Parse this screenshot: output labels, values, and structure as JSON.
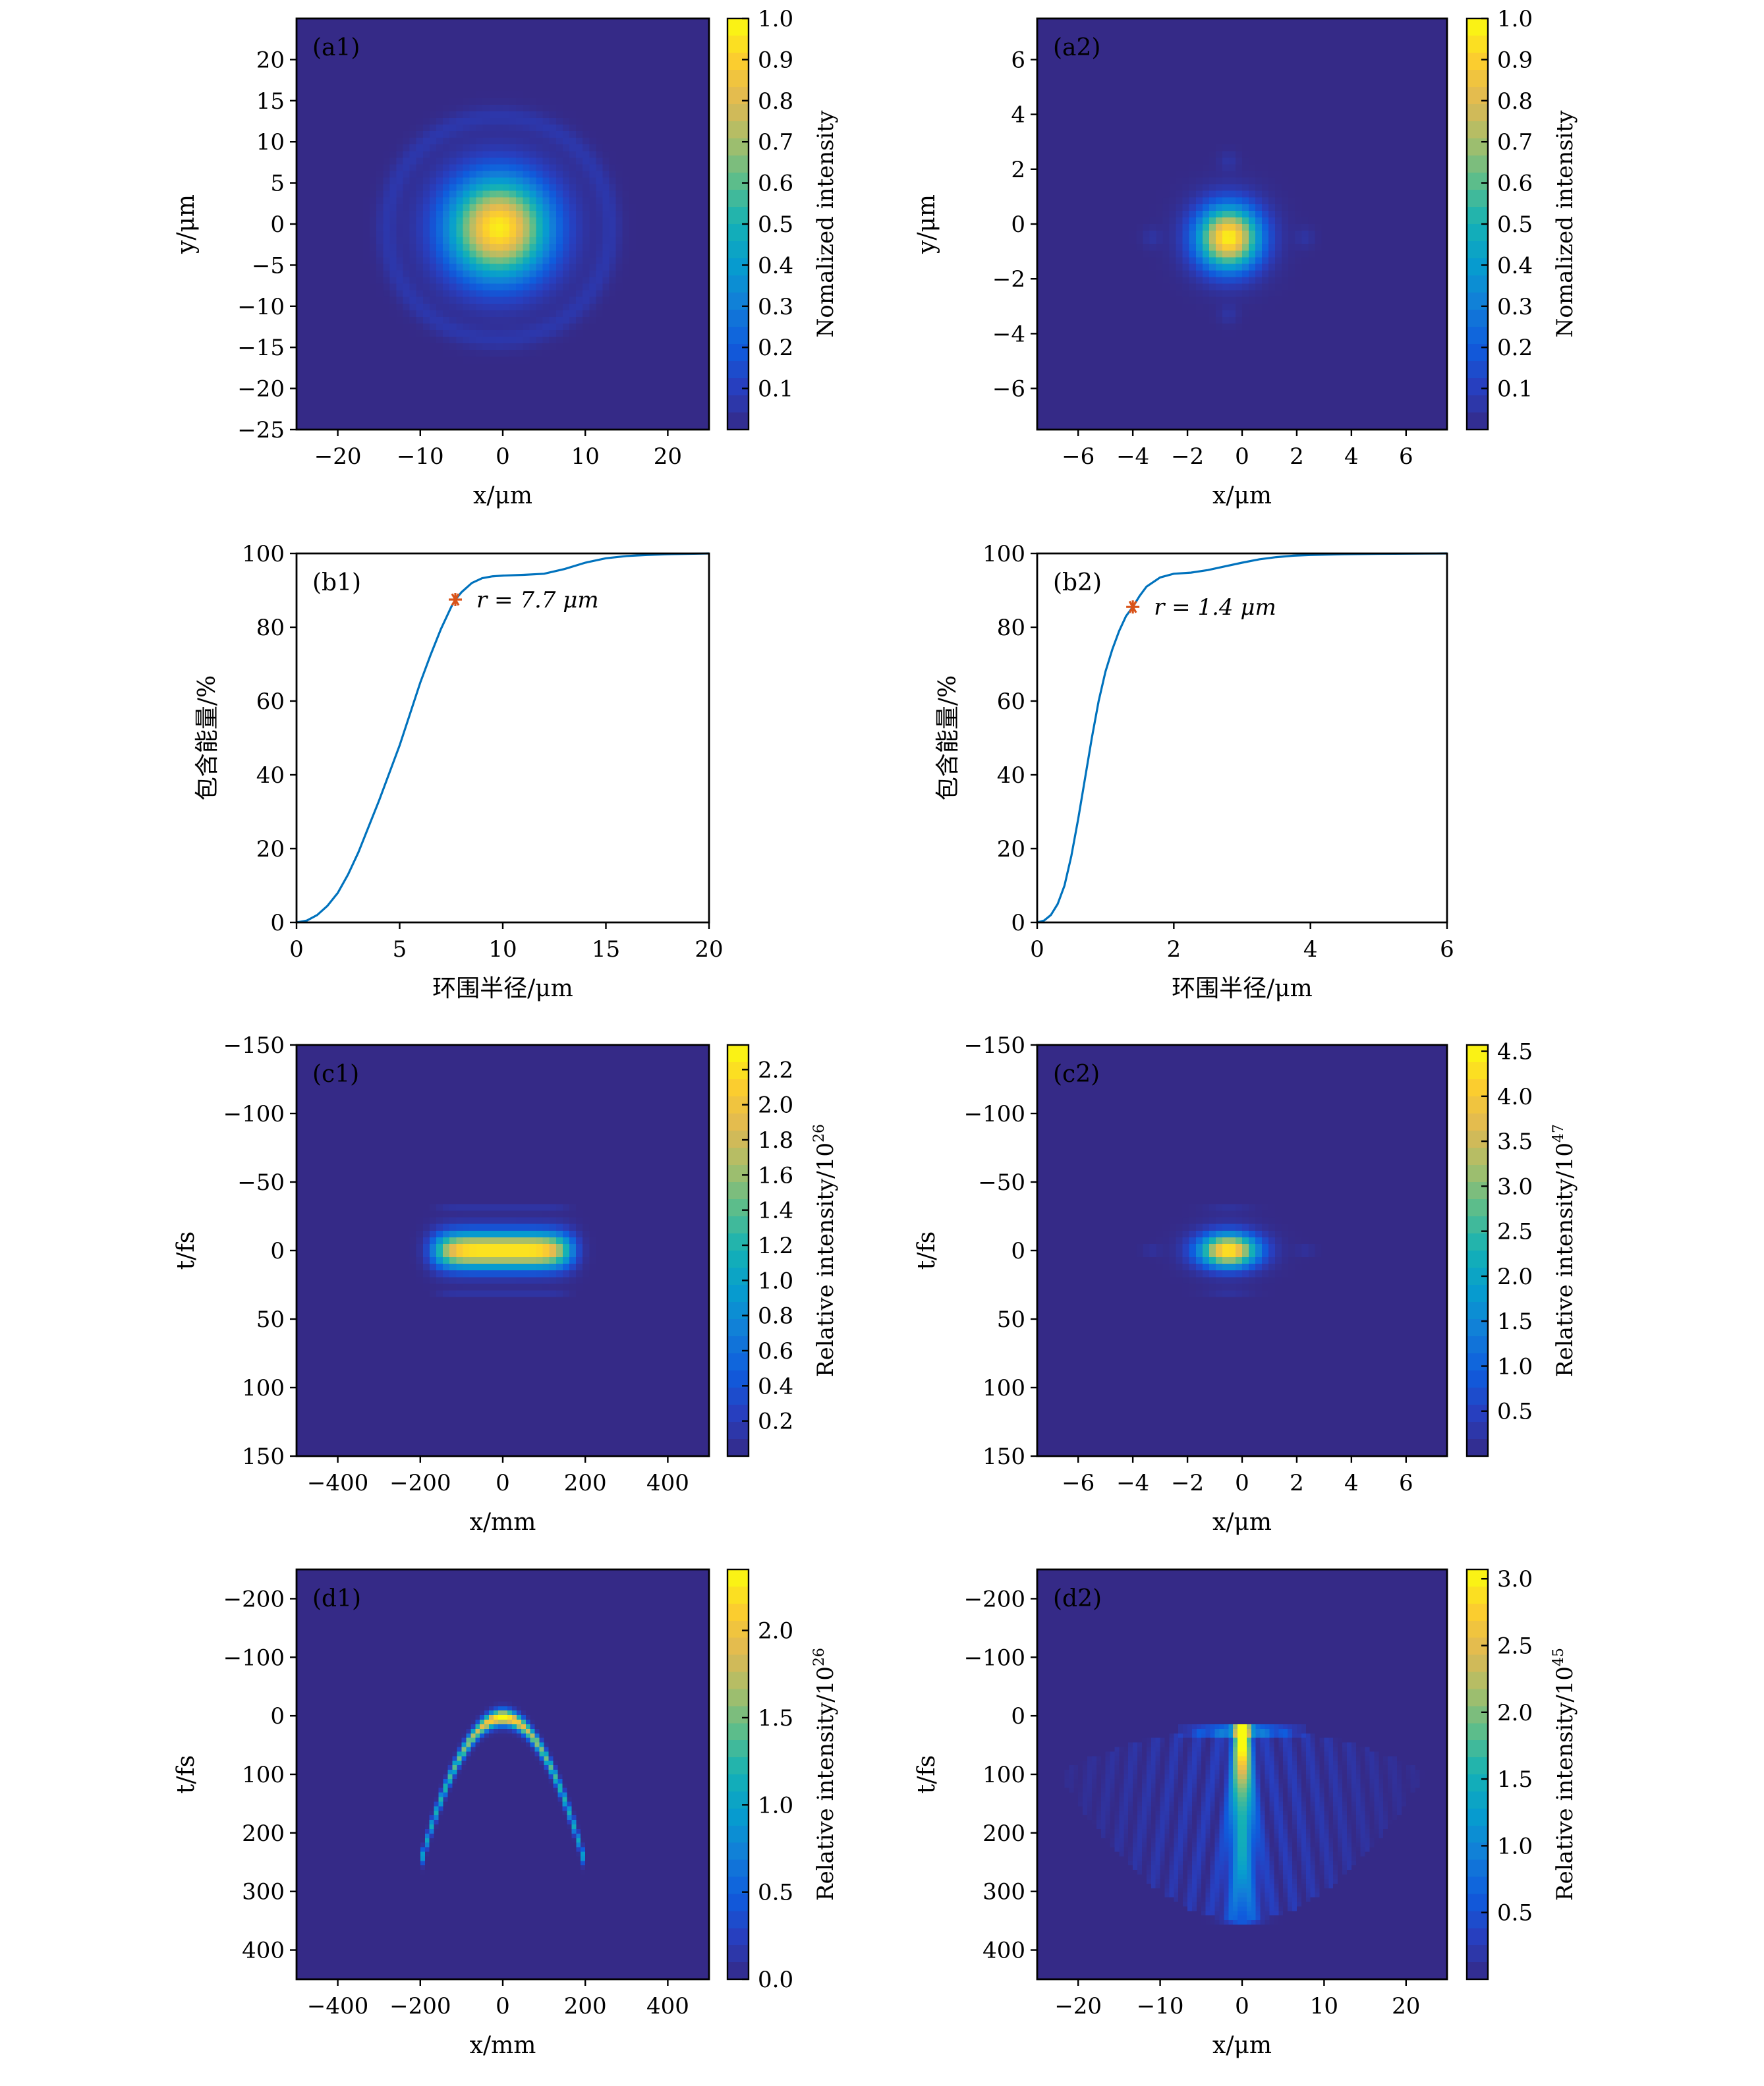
{
  "colors": {
    "colormap": "parula",
    "background_low": "#352a87",
    "curve": "#0072bd",
    "marker": "#d95319",
    "annotation_text": "#d7263d"
  },
  "chart_data": [
    {
      "type": "heatmap",
      "panel_label": "(a1)",
      "xlabel": "x/μm",
      "ylabel": "y/μm",
      "xlim": [
        -25,
        25
      ],
      "ylim": [
        -25,
        25
      ],
      "y_inverted": false,
      "xticks": [
        -20,
        -10,
        0,
        10,
        20
      ],
      "yticks": [
        20,
        15,
        10,
        5,
        0,
        -5,
        -10,
        -15,
        -20,
        -25
      ],
      "colorbar": {
        "label": "Nomalized intensity",
        "exponent": "",
        "range": [
          0,
          1
        ],
        "ticks": [
          0.1,
          0.2,
          0.3,
          0.4,
          0.5,
          0.6,
          0.7,
          0.8,
          0.9,
          1.0
        ]
      }
    },
    {
      "type": "heatmap",
      "panel_label": "(a2)",
      "xlabel": "x/μm",
      "ylabel": "y/μm",
      "xlim": [
        -7.5,
        7.5
      ],
      "ylim": [
        -7.5,
        7.5
      ],
      "y_inverted": false,
      "xticks": [
        -6,
        -4,
        -2,
        0,
        2,
        4,
        6
      ],
      "yticks": [
        6,
        4,
        2,
        0,
        -2,
        -4,
        -6
      ],
      "colorbar": {
        "label": "Nomalized intensity",
        "exponent": "",
        "range": [
          0,
          1
        ],
        "ticks": [
          0.1,
          0.2,
          0.3,
          0.4,
          0.5,
          0.6,
          0.7,
          0.8,
          0.9,
          1.0
        ]
      }
    },
    {
      "type": "line",
      "panel_label": "(b1)",
      "xlabel": "环围半径/μm",
      "ylabel": "包含能量/%",
      "xlim": [
        0,
        20
      ],
      "ylim": [
        0,
        100
      ],
      "xticks": [
        0,
        5,
        10,
        15,
        20
      ],
      "yticks": [
        0,
        20,
        40,
        60,
        80,
        100
      ],
      "x": [
        0,
        0.5,
        1,
        1.5,
        2,
        2.5,
        3,
        3.5,
        4,
        4.5,
        5,
        5.5,
        6,
        6.5,
        7,
        7.5,
        7.7,
        8,
        8.5,
        9,
        9.5,
        10,
        11,
        12,
        13,
        14,
        15,
        16,
        17,
        18,
        19,
        20
      ],
      "y": [
        0,
        0.5,
        2,
        4.5,
        8,
        13,
        19,
        26,
        33,
        40.5,
        48,
        56.5,
        65,
        72.5,
        79.5,
        85.5,
        87.5,
        89.5,
        92,
        93.3,
        93.8,
        94,
        94.2,
        94.5,
        95.8,
        97.5,
        98.7,
        99.3,
        99.6,
        99.8,
        99.9,
        100
      ],
      "marker": {
        "x": 7.7,
        "y": 87.5,
        "label": "r = 7.7 μm"
      }
    },
    {
      "type": "line",
      "panel_label": "(b2)",
      "xlabel": "环围半径/μm",
      "ylabel": "包含能量/%",
      "xlim": [
        0,
        6
      ],
      "ylim": [
        0,
        100
      ],
      "xticks": [
        0,
        2,
        4,
        6
      ],
      "yticks": [
        0,
        20,
        40,
        60,
        80,
        100
      ],
      "x": [
        0,
        0.1,
        0.2,
        0.3,
        0.4,
        0.5,
        0.6,
        0.7,
        0.8,
        0.9,
        1.0,
        1.1,
        1.2,
        1.3,
        1.4,
        1.5,
        1.6,
        1.8,
        2.0,
        2.25,
        2.5,
        2.75,
        3.0,
        3.25,
        3.5,
        3.75,
        4.0,
        4.5,
        5.0,
        6.0
      ],
      "y": [
        0,
        0.5,
        2,
        5,
        10,
        18,
        28,
        39,
        50,
        60,
        68,
        74,
        79,
        83,
        85.5,
        88.5,
        91,
        93.5,
        94.5,
        94.8,
        95.5,
        96.5,
        97.5,
        98.4,
        99,
        99.4,
        99.6,
        99.8,
        99.9,
        100
      ],
      "marker": {
        "x": 1.4,
        "y": 85.5,
        "label": "r = 1.4 μm"
      }
    },
    {
      "type": "heatmap",
      "panel_label": "(c1)",
      "xlabel": "x/mm",
      "ylabel": "t/fs",
      "xlim": [
        -500,
        500
      ],
      "ylim": [
        -150,
        150
      ],
      "y_inverted": true,
      "xticks": [
        -400,
        -200,
        0,
        200,
        400
      ],
      "yticks": [
        -150,
        -100,
        -50,
        0,
        50,
        100,
        150
      ],
      "colorbar": {
        "label": "Relative intensity/10",
        "exponent": "26",
        "range": [
          0,
          2.34
        ],
        "ticks": [
          0.2,
          0.4,
          0.6,
          0.8,
          1.0,
          1.2,
          1.4,
          1.6,
          1.8,
          2.0,
          2.2
        ]
      }
    },
    {
      "type": "heatmap",
      "panel_label": "(c2)",
      "xlabel": "x/μm",
      "ylabel": "t/fs",
      "xlim": [
        -7.5,
        7.5
      ],
      "ylim": [
        -150,
        150
      ],
      "y_inverted": true,
      "xticks": [
        -6,
        -4,
        -2,
        0,
        2,
        4,
        6
      ],
      "yticks": [
        -150,
        -100,
        -50,
        0,
        50,
        100,
        150
      ],
      "colorbar": {
        "label": "Relative intensity/10",
        "exponent": "47",
        "range": [
          0,
          4.57
        ],
        "ticks": [
          0.5,
          1.0,
          1.5,
          2.0,
          2.5,
          3.0,
          3.5,
          4.0,
          4.5
        ]
      }
    },
    {
      "type": "heatmap",
      "panel_label": "(d1)",
      "xlabel": "x/mm",
      "ylabel": "t/fs",
      "xlim": [
        -500,
        500
      ],
      "ylim": [
        -250,
        450
      ],
      "y_inverted": true,
      "xticks": [
        -400,
        -200,
        0,
        200,
        400
      ],
      "yticks": [
        -200,
        -100,
        0,
        100,
        200,
        300,
        400
      ],
      "colorbar": {
        "label": "Relative intensity/10",
        "exponent": "26",
        "range": [
          0,
          2.35
        ],
        "ticks": [
          0,
          0.5,
          1.0,
          1.5,
          2.0
        ]
      }
    },
    {
      "type": "heatmap",
      "panel_label": "(d2)",
      "xlabel": "x/μm",
      "ylabel": "t/fs",
      "xlim": [
        -25,
        25
      ],
      "ylim": [
        -250,
        450
      ],
      "y_inverted": true,
      "xticks": [
        -20,
        -10,
        0,
        10,
        20
      ],
      "yticks": [
        -200,
        -100,
        0,
        100,
        200,
        300,
        400
      ],
      "colorbar": {
        "label": "Relative intensity/10",
        "exponent": "45",
        "range": [
          0,
          3.07
        ],
        "ticks": [
          0.5,
          1.0,
          1.5,
          2.0,
          2.5,
          3.0
        ]
      }
    }
  ]
}
